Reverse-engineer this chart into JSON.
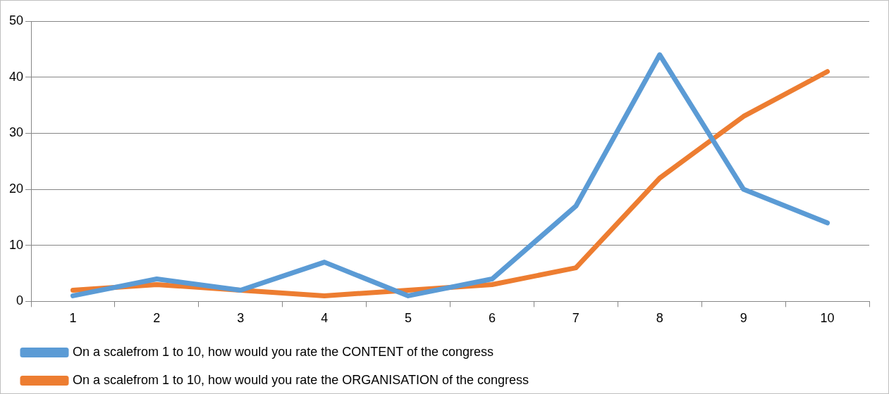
{
  "chart_data": {
    "type": "line",
    "categories": [
      "1",
      "2",
      "3",
      "4",
      "5",
      "6",
      "7",
      "8",
      "9",
      "10"
    ],
    "series": [
      {
        "name": "On a scalefrom 1 to 10, how would you rate the CONTENT of the congress",
        "color": "#5b9bd5",
        "values": [
          1,
          4,
          2,
          7,
          1,
          4,
          17,
          44,
          20,
          14
        ]
      },
      {
        "name": "On a scalefrom 1 to 10, how would you rate the ORGANISATION of the congress",
        "color": "#ed7d31",
        "values": [
          2,
          3,
          2,
          1,
          2,
          3,
          6,
          22,
          33,
          41
        ]
      }
    ],
    "ylim": [
      0,
      50
    ],
    "yticks": [
      0,
      10,
      20,
      30,
      40,
      50
    ],
    "grid": "y",
    "legend": "bottom",
    "marker": "none",
    "line_style": "solid"
  }
}
